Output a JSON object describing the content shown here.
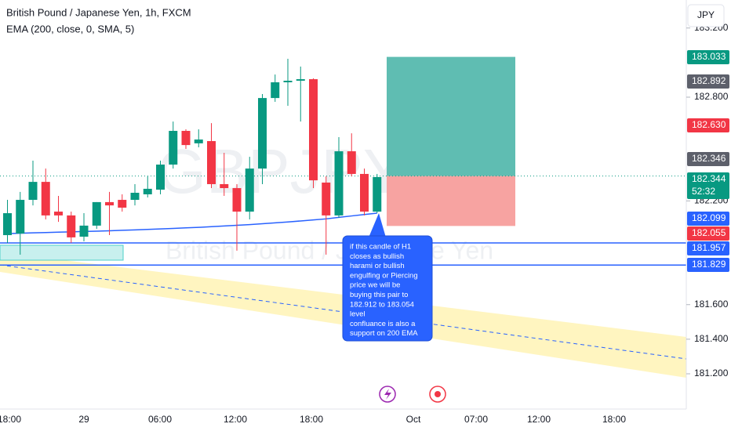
{
  "chart_data": {
    "type": "candlestick",
    "title": "British Pound / Japanese Yen, 1h, FXCM",
    "indicator": "EMA (200, close, 0, SMA, 5)",
    "currency": "JPY",
    "watermark": "GBPJPY, 1h",
    "watermark_subtitle": "British Pound / Japanese Yen",
    "up_color": "#089981",
    "down_color": "#f23645",
    "ema_color": "#2962ff",
    "open": [
      182.002,
      182.011,
      182.206,
      182.31,
      182.138,
      182.116,
      181.993,
      182.057,
      182.193,
      182.206,
      182.206,
      182.238,
      182.265,
      182.41,
      182.605,
      182.533,
      182.546,
      182.297,
      182.274,
      182.138,
      182.387,
      182.795,
      182.886,
      182.895,
      182.904,
      182.306,
      182.116,
      182.487,
      182.356,
      182.138
    ],
    "high": [
      182.206,
      182.252,
      182.433,
      182.387,
      182.229,
      182.138,
      182.129,
      182.193,
      182.252,
      182.238,
      182.297,
      182.342,
      182.433,
      182.659,
      182.614,
      182.614,
      182.65,
      182.478,
      182.297,
      182.455,
      182.818,
      182.931,
      183.022,
      182.977,
      182.909,
      182.342,
      182.569,
      182.591,
      182.387,
      182.356
    ],
    "low": [
      181.957,
      181.889,
      182.174,
      182.093,
      182.079,
      181.957,
      181.966,
      182.038,
      182.002,
      182.138,
      182.174,
      182.22,
      182.238,
      182.387,
      182.501,
      182.51,
      182.274,
      182.229,
      181.912,
      182.093,
      182.297,
      182.773,
      182.75,
      182.659,
      182.274,
      181.889,
      182.102,
      182.342,
      182.116,
      182.129
    ],
    "close": [
      182.129,
      182.206,
      182.31,
      182.116,
      182.116,
      181.989,
      182.057,
      182.193,
      182.174,
      182.161,
      182.247,
      182.27,
      182.41,
      182.605,
      182.523,
      182.555,
      182.297,
      182.274,
      182.138,
      182.387,
      182.795,
      182.886,
      182.895,
      182.904,
      182.319,
      182.116,
      182.487,
      182.356,
      182.138,
      182.338
    ],
    "ema": [
      182.011,
      182.013,
      182.015,
      182.017,
      182.019,
      182.021,
      182.023,
      182.025,
      182.027,
      182.03,
      182.032,
      182.035,
      182.038,
      182.041,
      182.044,
      182.047,
      182.051,
      182.055,
      182.059,
      182.063,
      182.068,
      182.073,
      182.078,
      182.084,
      182.09,
      182.096,
      182.105,
      182.113,
      182.121,
      182.129
    ],
    "x_labels": [
      "18:00",
      "29",
      "06:00",
      "12:00",
      "18:00",
      "Oct",
      "07:00",
      "12:00",
      "18:00"
    ],
    "ylim": [
      183.362,
      180.996
    ],
    "yticks": [
      {
        "value": 183.2,
        "label": "183.200"
      },
      {
        "value": 182.8,
        "label": "182.800"
      },
      {
        "value": 182.2,
        "label": "182.200"
      },
      {
        "value": 181.6,
        "label": "181.600"
      },
      {
        "value": 181.4,
        "label": "181.400"
      },
      {
        "value": 181.2,
        "label": "181.200"
      }
    ],
    "price_labels": [
      {
        "value": 183.033,
        "color": "#089981"
      },
      {
        "value": 182.892,
        "color": "#5d606b"
      },
      {
        "value": 182.63,
        "label": "182.630",
        "color": "#f23645"
      },
      {
        "value": 182.346,
        "color": "#5d606b"
      },
      {
        "value": 182.344,
        "color": "#089981",
        "countdown": "52:32"
      },
      {
        "value": 182.099,
        "color": "#2962ff"
      },
      {
        "value": 182.055,
        "color": "#f23645"
      },
      {
        "value": 181.957,
        "color": "#2962ff"
      },
      {
        "value": 181.829,
        "color": "#2962ff"
      }
    ],
    "note": [
      "if this candle of H1",
      "closes as bullish",
      "harami or bullish",
      "engulfing or Piercing",
      "price we will be",
      "buying this pair to",
      "182.912 to 183.054",
      "level",
      "confluance is also a",
      "support on 200 EMA"
    ]
  }
}
